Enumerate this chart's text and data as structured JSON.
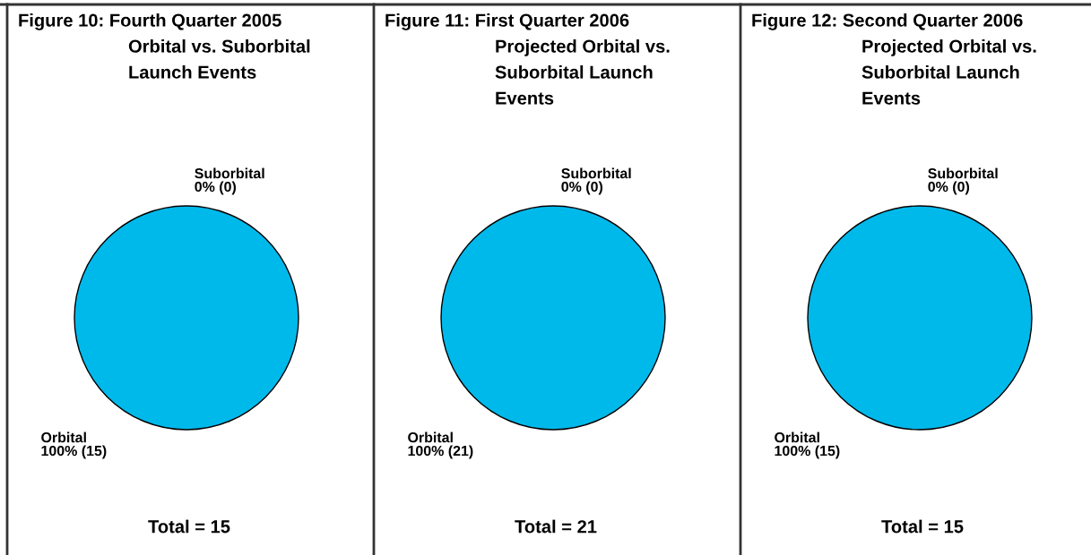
{
  "chart_data": [
    {
      "type": "pie",
      "title": "Figure 10: Fourth Quarter 2005\nOrbital vs. Suborbital\nLaunch Events",
      "categories": [
        "Suborbital",
        "Orbital"
      ],
      "values": [
        0,
        15
      ],
      "value_labels": [
        "0% (0)",
        "100% (15)"
      ],
      "colors": [
        "#00b9eb",
        "#00b9eb"
      ],
      "annotations": [
        "Total = 15"
      ]
    },
    {
      "type": "pie",
      "title": "Figure 11: First Quarter 2006\nProjected Orbital vs.\nSuborbital Launch\nEvents",
      "categories": [
        "Suborbital",
        "Orbital"
      ],
      "values": [
        0,
        21
      ],
      "value_labels": [
        "0% (0)",
        "100% (21)"
      ],
      "colors": [
        "#00b9eb",
        "#00b9eb"
      ],
      "annotations": [
        "Total = 21"
      ]
    },
    {
      "type": "pie",
      "title": "Figure 12: Second Quarter 2006\nProjected Orbital vs.\nSuborbital Launch\nEvents",
      "categories": [
        "Suborbital",
        "Orbital"
      ],
      "values": [
        0,
        15
      ],
      "value_labels": [
        "0% (0)",
        "100% (15)"
      ],
      "colors": [
        "#00b9eb",
        "#00b9eb"
      ],
      "annotations": [
        "Total = 15"
      ]
    }
  ]
}
